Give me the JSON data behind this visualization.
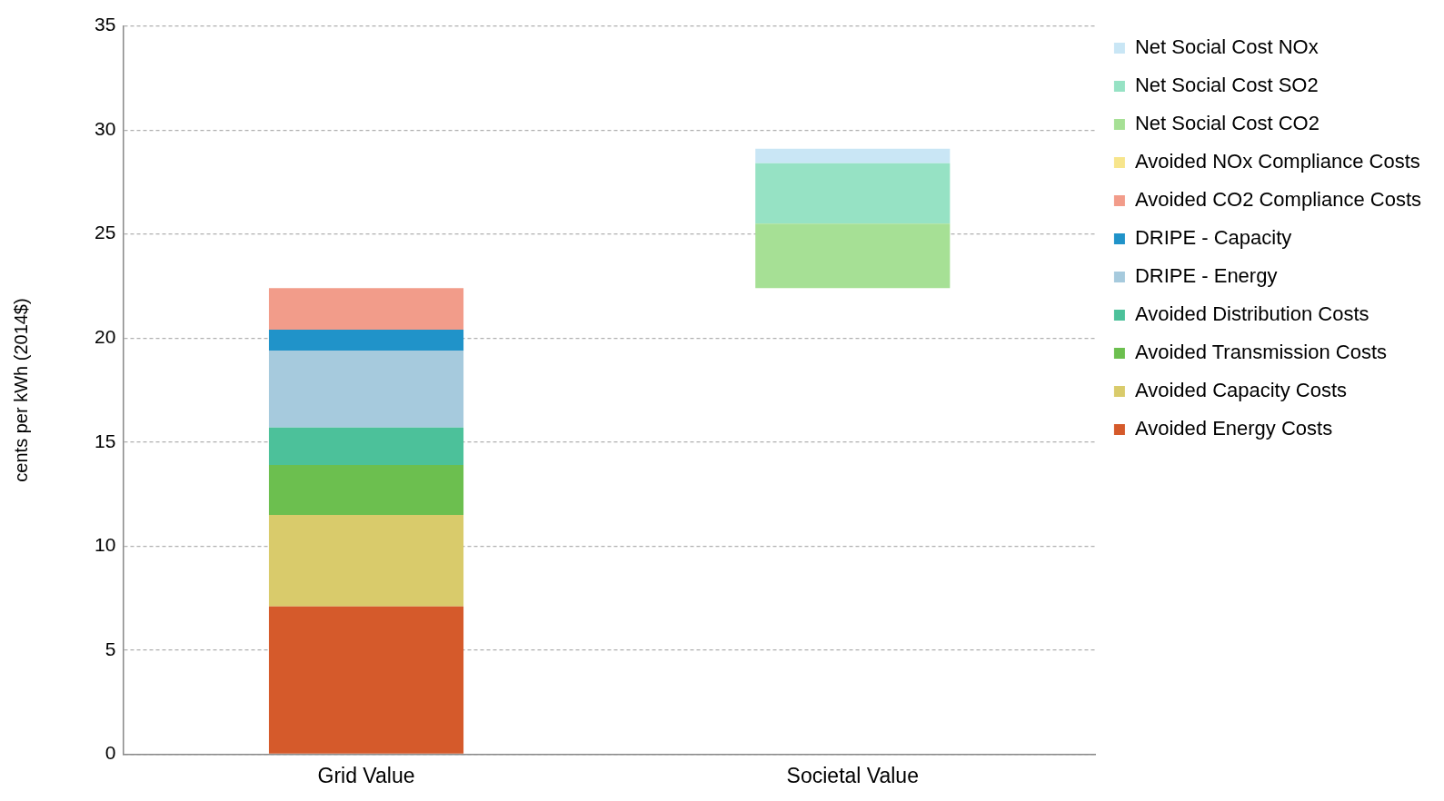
{
  "chart_data": {
    "type": "bar",
    "stacked": true,
    "ylabel": "cents per kWh (2014$)",
    "categories": [
      "Grid Value",
      "Societal Value"
    ],
    "series": [
      {
        "name": "Avoided Energy Costs",
        "color": "#d55a2b",
        "values": [
          7.1,
          null
        ]
      },
      {
        "name": "Avoided Capacity Costs",
        "color": "#d9cb6b",
        "values": [
          4.4,
          null
        ]
      },
      {
        "name": "Avoided Transmission Costs",
        "color": "#6cbf4f",
        "values": [
          2.4,
          null
        ]
      },
      {
        "name": "Avoided Distribution Costs",
        "color": "#4cc19a",
        "values": [
          1.8,
          null
        ]
      },
      {
        "name": "DRIPE - Energy",
        "color": "#a6cadd",
        "values": [
          3.7,
          null
        ]
      },
      {
        "name": "DRIPE - Capacity",
        "color": "#2093c9",
        "values": [
          1.0,
          null
        ]
      },
      {
        "name": "Avoided CO2 Compliance Costs",
        "color": "#f29c8a",
        "values": [
          2.0,
          null
        ]
      },
      {
        "name": "Avoided NOx Compliance Costs",
        "color": "#f7e58c",
        "values": [
          null,
          null
        ]
      },
      {
        "name": "Net Social Cost CO2",
        "color": "#a6e095",
        "values": [
          null,
          3.1
        ],
        "base": [
          null,
          22.4
        ]
      },
      {
        "name": "Net Social Cost SO2",
        "color": "#96e2c4",
        "values": [
          null,
          2.9
        ],
        "base": [
          null,
          25.5
        ]
      },
      {
        "name": "Net Social Cost NOx",
        "color": "#c9e6f5",
        "values": [
          null,
          0.7
        ],
        "base": [
          null,
          28.4
        ]
      }
    ],
    "ylim": [
      0,
      35
    ],
    "yticks": [
      0,
      5,
      10,
      15,
      20,
      25,
      30,
      35
    ],
    "grid": "y",
    "legend": "right"
  }
}
